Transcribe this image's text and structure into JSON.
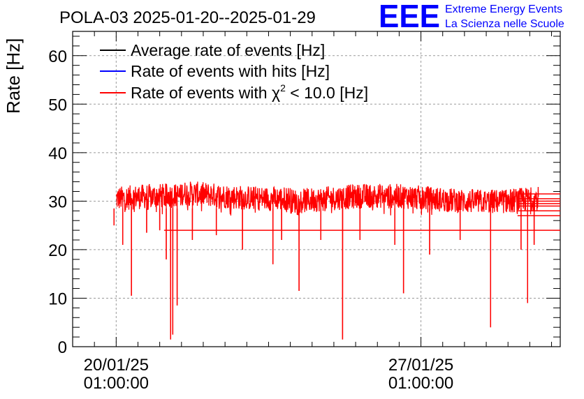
{
  "chart_data": {
    "type": "line",
    "title": "POLA-03 2025-01-20--2025-01-29",
    "ylabel": "Rate [Hz]",
    "xlabel": "",
    "ylim": [
      0,
      65
    ],
    "yticks": [
      0,
      10,
      20,
      30,
      40,
      50,
      60
    ],
    "grid": true,
    "legend_position": "top-left",
    "x_tick_labels": [
      {
        "date": "20/01/25",
        "time": "01:00:00",
        "day": 0
      },
      {
        "date": "27/01/25",
        "time": "01:00:00",
        "day": 7
      }
    ],
    "xlim_days": [
      -1.0,
      10.2
    ],
    "data_end_day": 9.7,
    "legend": [
      {
        "label": "Average rate of events [Hz]",
        "color": "#000000"
      },
      {
        "label": "Rate of events with hits [Hz]",
        "color": "#0000ff"
      },
      {
        "label_prefix": "Rate of events with ",
        "chi": "χ",
        "sup": "2",
        "label_suffix": " < 10.0 [Hz]",
        "color": "#ff0000"
      }
    ],
    "series": [
      {
        "name": "Rate of events with chi2 < 10.0",
        "color": "#ff0000",
        "baseline_hz": 30.5,
        "band_low": 27,
        "band_high": 33,
        "dips": [
          {
            "day": -0.05,
            "value": 25
          },
          {
            "day": 0.15,
            "value": 21
          },
          {
            "day": 0.35,
            "value": 10.5
          },
          {
            "day": 0.7,
            "value": 23.5
          },
          {
            "day": 1.0,
            "value": 24
          },
          {
            "day": 1.15,
            "value": 18
          },
          {
            "day": 1.25,
            "value": 1.5
          },
          {
            "day": 1.3,
            "value": 2.5
          },
          {
            "day": 1.4,
            "value": 8.5
          },
          {
            "day": 1.75,
            "value": 22
          },
          {
            "day": 2.3,
            "value": 23
          },
          {
            "day": 2.9,
            "value": 20
          },
          {
            "day": 3.6,
            "value": 17
          },
          {
            "day": 3.8,
            "value": 22
          },
          {
            "day": 4.2,
            "value": 11.5
          },
          {
            "day": 4.7,
            "value": 22
          },
          {
            "day": 5.2,
            "value": 1.5
          },
          {
            "day": 5.6,
            "value": 22
          },
          {
            "day": 6.4,
            "value": 21
          },
          {
            "day": 6.6,
            "value": 11
          },
          {
            "day": 7.2,
            "value": 19
          },
          {
            "day": 7.9,
            "value": 22
          },
          {
            "day": 8.6,
            "value": 4
          },
          {
            "day": 9.3,
            "value": 20
          },
          {
            "day": 9.45,
            "value": 9
          },
          {
            "day": 9.6,
            "value": 21
          }
        ],
        "tail_lines": [
          31.5,
          30.5,
          30,
          29.5,
          29,
          28,
          27,
          24
        ]
      }
    ]
  },
  "branding": {
    "logo_text": "EEE",
    "line1": "Extreme Energy Events",
    "line2": "La Scienza nelle Scuole",
    "color": "#0000ff"
  }
}
